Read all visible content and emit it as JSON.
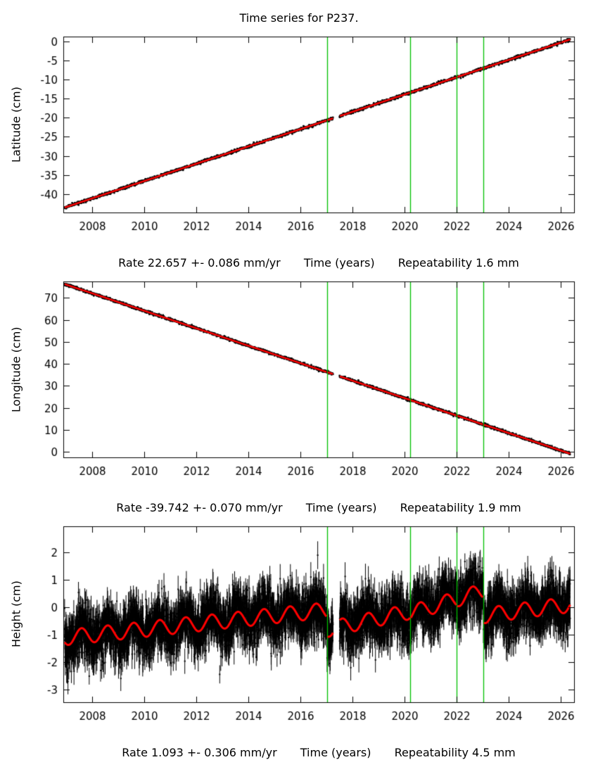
{
  "page": {
    "title": "Time series for P237."
  },
  "style": {
    "background": "#ffffff",
    "point_color": "#000000",
    "model_color": "#ff0000",
    "event_color": "#00c000",
    "axis_color": "#000000"
  },
  "axis": {
    "xlabel": "Time (years)",
    "xlim": [
      2006.9,
      2026.5
    ],
    "xticks": [
      2008,
      2010,
      2012,
      2014,
      2016,
      2018,
      2020,
      2022,
      2024,
      2026
    ]
  },
  "events": [
    2017.02,
    2020.22,
    2022.0,
    2023.02
  ],
  "gaps": [
    [
      2017.25,
      2017.5
    ]
  ],
  "chart_data": [
    {
      "type": "scatter",
      "name": "latitude",
      "ylabel": "Latitude (cm)",
      "ylim": [
        -44.8,
        1.2
      ],
      "yticks": [
        0,
        -5,
        -10,
        -15,
        -20,
        -25,
        -30,
        -35,
        -40
      ],
      "series": [
        {
          "name": "daily position with uncertainty",
          "style": "black points with error bars"
        },
        {
          "name": "model fit",
          "style": "red line"
        }
      ],
      "model": {
        "kind": "linear",
        "t_start": 2006.95,
        "t_end": 2026.35,
        "v_start": -43.5,
        "rate_cm_per_yr": 2.2657
      },
      "rate_mm_per_yr": 22.657,
      "rate_uncertainty_mm_per_yr": 0.086,
      "repeatability_mm": 1.6,
      "noise_sigma_cm": 0.18,
      "errorbar_cm": 0.2,
      "sample_step_yr": 0.008,
      "point_size": 1.25,
      "model_width": 2.5,
      "seed": 1101,
      "caption": {
        "rate": "Rate 22.657 +- 0.086 mm/yr",
        "xlabel": "Time (years)",
        "repeatability": "Repeatability 1.6 mm"
      }
    },
    {
      "type": "scatter",
      "name": "longitude",
      "ylabel": "Longitude (cm)",
      "ylim": [
        -2.5,
        77.5
      ],
      "yticks": [
        70,
        60,
        50,
        40,
        30,
        20,
        10,
        0
      ],
      "series": [
        {
          "name": "daily position with uncertainty",
          "style": "black points with error bars"
        },
        {
          "name": "model fit",
          "style": "red line"
        }
      ],
      "model": {
        "kind": "linear",
        "t_start": 2006.95,
        "t_end": 2026.35,
        "v_start": 76.3,
        "rate_cm_per_yr": -3.9742
      },
      "rate_mm_per_yr": -39.742,
      "rate_uncertainty_mm_per_yr": 0.07,
      "repeatability_mm": 1.9,
      "noise_sigma_cm": 0.3,
      "errorbar_cm": 0.35,
      "sample_step_yr": 0.008,
      "point_size": 1.25,
      "model_width": 2.5,
      "seed": 2202,
      "caption": {
        "rate": "Rate -39.742 +- 0.070 mm/yr",
        "xlabel": "Time (years)",
        "repeatability": "Repeatability 1.9 mm"
      }
    },
    {
      "type": "scatter",
      "name": "height",
      "ylabel": "Height (cm)",
      "ylim": [
        -3.45,
        2.95
      ],
      "yticks": [
        2,
        1,
        0,
        -1,
        -2,
        -3
      ],
      "series": [
        {
          "name": "daily position with uncertainty",
          "style": "black points with error bars"
        },
        {
          "name": "model fit with annual signal",
          "style": "red line"
        }
      ],
      "model": {
        "kind": "anchors",
        "t_start": 2006.95,
        "t_end": 2026.35,
        "anchors": [
          [
            2006.95,
            -1.1
          ],
          [
            2017.01,
            -0.1
          ],
          [
            2017.03,
            -0.8
          ],
          [
            2020.21,
            -0.15
          ],
          [
            2020.23,
            -0.2
          ],
          [
            2021.99,
            0.3
          ],
          [
            2022.01,
            0.3
          ],
          [
            2023.01,
            0.6
          ],
          [
            2023.03,
            -0.3
          ],
          [
            2024.6,
            -0.1
          ],
          [
            2026.35,
            0.1
          ]
        ],
        "seasonal_amp_cm": 0.28,
        "seasonal_phase": 0.35
      },
      "rate_mm_per_yr": 1.093,
      "rate_uncertainty_mm_per_yr": 0.306,
      "repeatability_mm": 4.5,
      "noise_sigma_cm": 0.48,
      "errorbar_cm": 0.42,
      "sample_step_yr": 0.004,
      "point_size": 1.0,
      "model_width": 3,
      "seed": 3303,
      "caption": {
        "rate": "Rate 1.093 +- 0.306 mm/yr",
        "xlabel": "Time (years)",
        "repeatability": "Repeatability 4.5 mm"
      }
    }
  ]
}
